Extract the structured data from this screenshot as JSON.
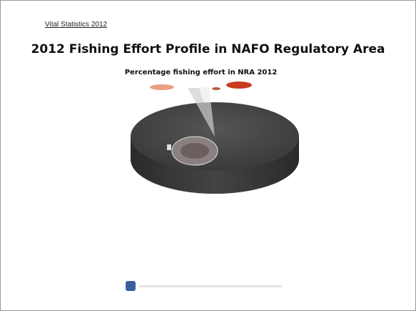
{
  "header": {
    "link": "Vital Statistics 2012",
    "title": "2012 Fishing Effort Profile in NAFO Regulatory Area",
    "subtitle": "Percentage fishing effort in NRA 2012"
  }
}
